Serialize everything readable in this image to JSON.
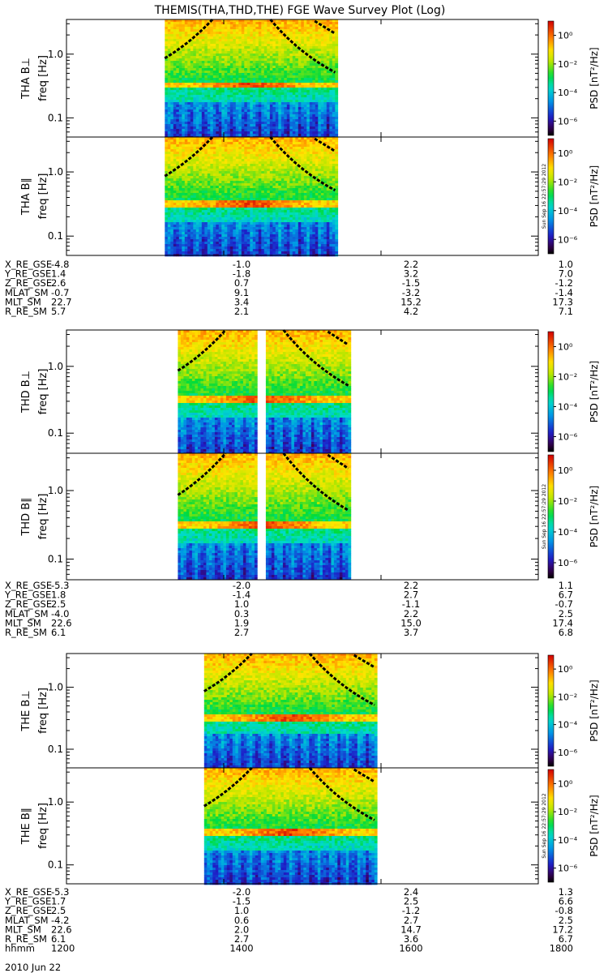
{
  "title": "THEMIS(THA,THD,THE) FGE Wave Survey Plot (Log)",
  "colorbar": {
    "label": "PSD [nT²/Hz]",
    "tick_labels": [
      "10⁰",
      "10⁻²",
      "10⁻⁴",
      "10⁻⁶"
    ],
    "tick_exponents": [
      0,
      -2,
      -4,
      -6
    ]
  },
  "timestamp": "Sun Sep 16 22:57:29 2012",
  "chart_data": {
    "type": "heatmap",
    "x": {
      "range_hhmm": [
        "1200",
        "1800"
      ],
      "range_minutes": [
        720,
        1080
      ],
      "tick_labels": [
        "1200",
        "1400",
        "1600",
        "1800"
      ]
    },
    "y": {
      "scale": "log",
      "range_hz": [
        0.05,
        3.5
      ],
      "tick_values": [
        1.0,
        0.1
      ],
      "tick_labels": [
        "1.0",
        "0.1"
      ]
    },
    "colorscale": {
      "quantity": "PSD",
      "scale": "log",
      "range_exponent": [
        -7,
        1
      ]
    },
    "panels": [
      {
        "label": "THA B⊥",
        "ylabel": "freq [Hz]",
        "data_start_hhmm": "1315",
        "data_end_hhmm": "1525",
        "gap_hhmm": null,
        "line_band_hz": [
          0.3,
          0.35
        ],
        "timestamp": false
      },
      {
        "label": "THA B∥",
        "ylabel": "freq [Hz]",
        "data_start_hhmm": "1315",
        "data_end_hhmm": "1525",
        "gap_hhmm": null,
        "line_band_hz": [
          0.3,
          0.35
        ],
        "timestamp": true
      },
      {
        "label": "THD B⊥",
        "ylabel": "freq [Hz]",
        "data_start_hhmm": "1325",
        "data_end_hhmm": "1535",
        "gap_hhmm": "1429",
        "line_band_hz": [
          0.3,
          0.35
        ],
        "timestamp": false
      },
      {
        "label": "THD B∥",
        "ylabel": "freq [Hz]",
        "data_start_hhmm": "1325",
        "data_end_hhmm": "1535",
        "gap_hhmm": "1429",
        "line_band_hz": [
          0.3,
          0.35
        ],
        "timestamp": true
      },
      {
        "label": "THE B⊥",
        "ylabel": "freq [Hz]",
        "data_start_hhmm": "1345",
        "data_end_hhmm": "1555",
        "gap_hhmm": null,
        "line_band_hz": [
          0.3,
          0.35
        ],
        "timestamp": false
      },
      {
        "label": "THE B∥",
        "ylabel": "freq [Hz]",
        "data_start_hhmm": "1345",
        "data_end_hhmm": "1555",
        "gap_hhmm": null,
        "line_band_hz": [
          0.3,
          0.35
        ],
        "timestamp": true
      }
    ]
  },
  "ephemeris": [
    {
      "rows": [
        {
          "name": "X_RE_GSE",
          "values": [
            "-4.8",
            "-1.0",
            "2.2",
            "1.0"
          ]
        },
        {
          "name": "Y_RE_GSE",
          "values": [
            "1.4",
            "-1.8",
            "3.2",
            "7.0"
          ]
        },
        {
          "name": "Z_RE_GSE",
          "values": [
            "2.6",
            "0.7",
            "-1.5",
            "-1.2"
          ]
        },
        {
          "name": "MLAT_SM",
          "values": [
            "-0.7",
            "9.1",
            "-3.2",
            "-1.4"
          ]
        },
        {
          "name": "MLT_SM",
          "values": [
            "22.7",
            "3.4",
            "15.2",
            "17.3"
          ]
        },
        {
          "name": "R_RE_SM",
          "values": [
            "5.7",
            "2.1",
            "4.2",
            "7.1"
          ]
        }
      ]
    },
    {
      "rows": [
        {
          "name": "X_RE_GSE",
          "values": [
            "-5.3",
            "-2.0",
            "2.2",
            "1.1"
          ]
        },
        {
          "name": "Y_RE_GSE",
          "values": [
            "1.8",
            "-1.4",
            "2.7",
            "6.7"
          ]
        },
        {
          "name": "Z_RE_GSE",
          "values": [
            "2.5",
            "1.0",
            "-1.1",
            "-0.7"
          ]
        },
        {
          "name": "MLAT_SM",
          "values": [
            "-4.0",
            "0.3",
            "2.2",
            "2.5"
          ]
        },
        {
          "name": "MLT_SM",
          "values": [
            "22.6",
            "1.9",
            "15.0",
            "17.4"
          ]
        },
        {
          "name": "R_RE_SM",
          "values": [
            "6.1",
            "2.7",
            "3.7",
            "6.8"
          ]
        }
      ]
    },
    {
      "rows": [
        {
          "name": "X_RE_GSE",
          "values": [
            "-5.3",
            "-2.0",
            "2.4",
            "1.3"
          ]
        },
        {
          "name": "Y_RE_GSE",
          "values": [
            "1.7",
            "-1.5",
            "2.5",
            "6.6"
          ]
        },
        {
          "name": "Z_RE_GSE",
          "values": [
            "2.5",
            "1.0",
            "-1.2",
            "-0.8"
          ]
        },
        {
          "name": "MLAT_SM",
          "values": [
            "-4.2",
            "0.6",
            "2.7",
            "2.5"
          ]
        },
        {
          "name": "MLT_SM",
          "values": [
            "22.6",
            "2.0",
            "14.7",
            "17.2"
          ]
        },
        {
          "name": "R_RE_SM",
          "values": [
            "6.1",
            "2.7",
            "3.6",
            "6.7"
          ]
        },
        {
          "name": "hhmm",
          "values": [
            "1200",
            "1400",
            "1600",
            "1800"
          ]
        }
      ]
    }
  ],
  "date_label": "2010 Jun 22"
}
